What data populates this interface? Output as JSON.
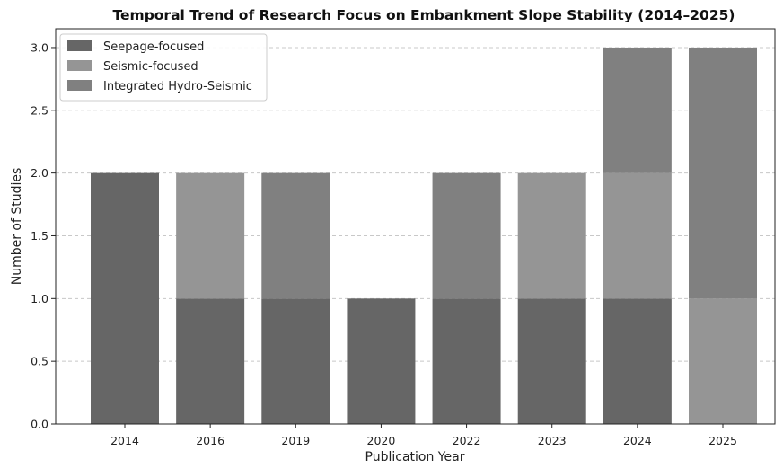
{
  "chart_data": {
    "type": "bar",
    "stacked": true,
    "title": "Temporal Trend of Research Focus on Embankment Slope Stability (2014–2025)",
    "xlabel": "Publication Year",
    "ylabel": "Number of Studies",
    "categories": [
      "2014",
      "2016",
      "2019",
      "2020",
      "2022",
      "2023",
      "2024",
      "2025"
    ],
    "ylim": [
      0,
      3.15
    ],
    "yticks": [
      "0.0",
      "0.5",
      "1.0",
      "1.5",
      "2.0",
      "2.5",
      "3.0"
    ],
    "grid": "y-dashed",
    "legend_position": "top-left",
    "series": [
      {
        "name": "Seepage-focused",
        "color": "#666666",
        "values": [
          2,
          1,
          1,
          1,
          1,
          1,
          1,
          0
        ]
      },
      {
        "name": "Seismic-focused",
        "color": "#959595",
        "values": [
          0,
          1,
          0,
          0,
          0,
          1,
          1,
          1
        ]
      },
      {
        "name": "Integrated Hydro-Seismic",
        "color": "#808080",
        "values": [
          0,
          0,
          1,
          0,
          1,
          0,
          1,
          2
        ]
      }
    ]
  }
}
